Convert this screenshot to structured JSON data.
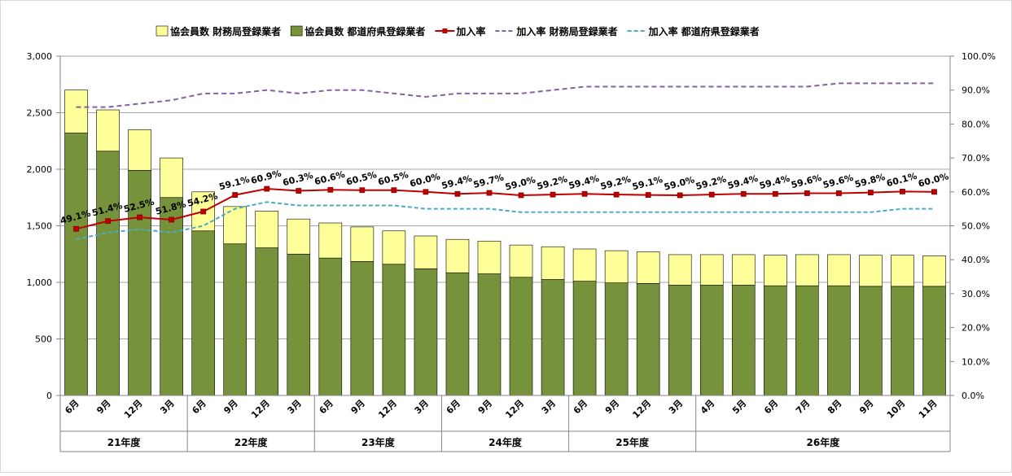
{
  "chart_data": {
    "type": "bar",
    "stacked": true,
    "categories": [
      "6月",
      "9月",
      "12月",
      "3月",
      "6月",
      "9月",
      "12月",
      "3月",
      "6月",
      "9月",
      "12月",
      "3月",
      "6月",
      "9月",
      "12月",
      "3月",
      "6月",
      "9月",
      "12月",
      "3月",
      "4月",
      "5月",
      "6月",
      "7月",
      "8月",
      "9月",
      "10月",
      "11月"
    ],
    "year_groups": [
      {
        "label": "21年度",
        "start": 0,
        "count": 4
      },
      {
        "label": "22年度",
        "start": 4,
        "count": 4
      },
      {
        "label": "23年度",
        "start": 8,
        "count": 4
      },
      {
        "label": "24年度",
        "start": 12,
        "count": 4
      },
      {
        "label": "25年度",
        "start": 16,
        "count": 4
      },
      {
        "label": "26年度",
        "start": 20,
        "count": 8
      }
    ],
    "bar_series": [
      {
        "name": "協会員数 都道府県登録業者",
        "color": "#76933C",
        "values": [
          2320,
          2160,
          1990,
          1750,
          1455,
          1340,
          1305,
          1250,
          1215,
          1185,
          1160,
          1120,
          1085,
          1075,
          1045,
          1025,
          1010,
          995,
          990,
          975,
          975,
          975,
          970,
          970,
          970,
          965,
          965,
          965
        ]
      },
      {
        "name": "協会員数 財務局登録業者",
        "color": "#FFFF99",
        "values": [
          380,
          365,
          360,
          350,
          345,
          330,
          325,
          310,
          310,
          305,
          295,
          290,
          295,
          290,
          285,
          290,
          285,
          285,
          280,
          270,
          270,
          270,
          270,
          275,
          275,
          275,
          275,
          270
        ]
      }
    ],
    "line_series": [
      {
        "name": "加入率",
        "color": "#C00000",
        "style": "solid-marker",
        "values": [
          49.1,
          51.4,
          52.5,
          51.8,
          54.2,
          59.1,
          60.9,
          60.3,
          60.6,
          60.5,
          60.5,
          60.0,
          59.4,
          59.7,
          59.0,
          59.2,
          59.4,
          59.2,
          59.1,
          59.0,
          59.2,
          59.4,
          59.4,
          59.6,
          59.6,
          59.8,
          60.1,
          60.0
        ],
        "labels": [
          "49.1%",
          "51.4%",
          "52.5%",
          "51.8%",
          "54.2%",
          "59.1%",
          "60.9%",
          "60.3%",
          "60.6%",
          "60.5%",
          "60.5%",
          "60.0%",
          "59.4%",
          "59.7%",
          "59.0%",
          "59.2%",
          "59.4%",
          "59.2%",
          "59.1%",
          "59.0%",
          "59.2%",
          "59.4%",
          "59.4%",
          "59.6%",
          "59.6%",
          "59.8%",
          "60.1%",
          "60.0%"
        ]
      },
      {
        "name": "加入率 財務局登録業者",
        "color": "#8064A2",
        "style": "dashed",
        "values": [
          85,
          85,
          86,
          87,
          89,
          89,
          90,
          89,
          90,
          90,
          89,
          88,
          89,
          89,
          89,
          90,
          91,
          91,
          91,
          91,
          91,
          91,
          91,
          91,
          92,
          92,
          92,
          92
        ]
      },
      {
        "name": "加入率 都道府県登録業者",
        "color": "#4BACC6",
        "style": "dashed",
        "values": [
          46,
          48,
          49,
          48,
          50,
          55,
          57,
          56,
          56,
          56,
          56,
          55,
          55,
          55,
          54,
          54,
          54,
          54,
          54,
          54,
          54,
          54,
          54,
          54,
          54,
          54,
          55,
          55
        ]
      }
    ],
    "y_left": {
      "min": 0,
      "max": 3000,
      "ticks": [
        "0",
        "500",
        "1,000",
        "1,500",
        "2,000",
        "2,500",
        "3,000"
      ],
      "tick_values": [
        0,
        500,
        1000,
        1500,
        2000,
        2500,
        3000
      ]
    },
    "y_right": {
      "min": 0,
      "max": 100,
      "ticks": [
        "0.0%",
        "10.0%",
        "20.0%",
        "30.0%",
        "40.0%",
        "50.0%",
        "60.0%",
        "70.0%",
        "80.0%",
        "90.0%",
        "100.0%"
      ],
      "tick_values": [
        0,
        10,
        20,
        30,
        40,
        50,
        60,
        70,
        80,
        90,
        100
      ]
    },
    "legend": {
      "position": "top",
      "items": [
        {
          "name": "協会員数 財務局登録業者",
          "kind": "box",
          "color": "#FFFF99"
        },
        {
          "name": "協会員数 都道府県登録業者",
          "kind": "box",
          "color": "#76933C"
        },
        {
          "name": "加入率",
          "kind": "line-marker",
          "color": "#C00000"
        },
        {
          "name": "加入率 財務局登録業者",
          "kind": "dash",
          "color": "#8064A2"
        },
        {
          "name": "加入率 都道府県登録業者",
          "kind": "dash",
          "color": "#4BACC6"
        }
      ]
    },
    "grid": true
  }
}
